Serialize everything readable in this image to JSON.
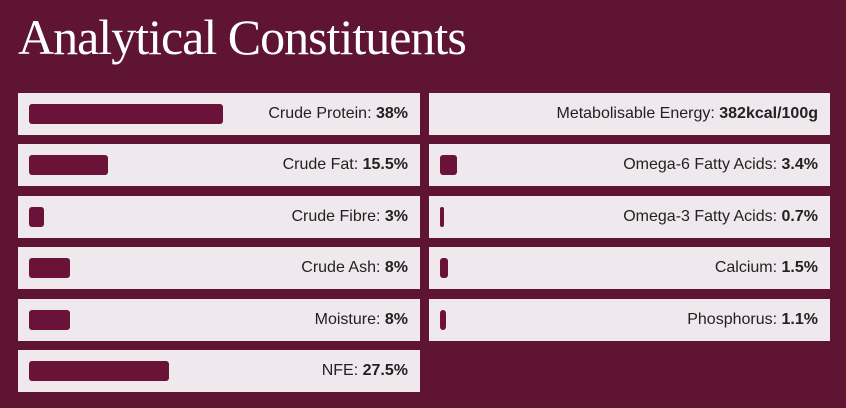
{
  "title": "Analytical Constituents",
  "columns": [
    [
      {
        "name": "Crude Protein:",
        "value": 38,
        "value_label": "38%"
      },
      {
        "name": "Crude Fat:",
        "value": 15.5,
        "value_label": "15.5%"
      },
      {
        "name": "Crude Fibre:",
        "value": 3,
        "value_label": "3%"
      },
      {
        "name": "Crude Ash:",
        "value": 8,
        "value_label": "8%"
      },
      {
        "name": "Moisture:",
        "value": 8,
        "value_label": "8%"
      },
      {
        "name": "NFE:",
        "value": 27.5,
        "value_label": "27.5%"
      }
    ],
    [
      {
        "name": "Metabolisable Energy:",
        "value_label": "382kcal/100g"
      },
      {
        "name": "Omega-6 Fatty Acids:",
        "value": 3.4,
        "value_label": "3.4%"
      },
      {
        "name": "Omega-3 Fatty Acids:",
        "value": 0.7,
        "value_label": "0.7%"
      },
      {
        "name": "Calcium:",
        "value": 1.5,
        "value_label": "1.5%"
      },
      {
        "name": "Phosphorus:",
        "value": 1.1,
        "value_label": "1.1%"
      }
    ]
  ]
}
